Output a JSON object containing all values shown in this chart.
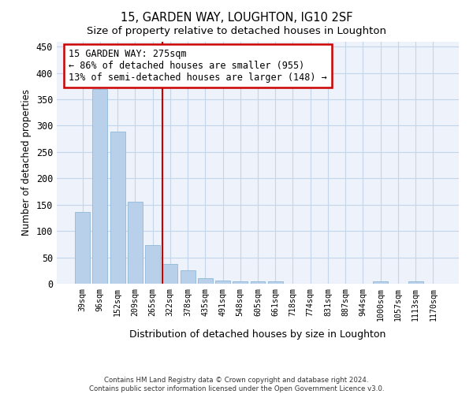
{
  "title": "15, GARDEN WAY, LOUGHTON, IG10 2SF",
  "subtitle": "Size of property relative to detached houses in Loughton",
  "xlabel": "Distribution of detached houses by size in Loughton",
  "ylabel": "Number of detached properties",
  "categories": [
    "39sqm",
    "96sqm",
    "152sqm",
    "209sqm",
    "265sqm",
    "322sqm",
    "378sqm",
    "435sqm",
    "491sqm",
    "548sqm",
    "605sqm",
    "661sqm",
    "718sqm",
    "774sqm",
    "831sqm",
    "887sqm",
    "944sqm",
    "1000sqm",
    "1057sqm",
    "1113sqm",
    "1170sqm"
  ],
  "values": [
    136,
    370,
    288,
    155,
    74,
    37,
    26,
    11,
    6,
    5,
    5,
    5,
    0,
    0,
    0,
    0,
    0,
    5,
    0,
    5,
    0
  ],
  "bar_color": "#b8d0ea",
  "bar_edge_color": "#90b8d8",
  "property_label": "15 GARDEN WAY: 275sqm",
  "annotation_line1": "← 86% of detached houses are smaller (955)",
  "annotation_line2": "13% of semi-detached houses are larger (148) →",
  "vline_color": "#cc0000",
  "vline_position": 4.55,
  "annotation_box_edgecolor": "#cc0000",
  "ylim": [
    0,
    460
  ],
  "yticks": [
    0,
    50,
    100,
    150,
    200,
    250,
    300,
    350,
    400,
    450
  ],
  "footer_line1": "Contains HM Land Registry data © Crown copyright and database right 2024.",
  "footer_line2": "Contains public sector information licensed under the Open Government Licence v3.0.",
  "background_color": "#edf2fb",
  "grid_color": "#c5d5ea",
  "title_fontsize": 10.5,
  "subtitle_fontsize": 9.5
}
